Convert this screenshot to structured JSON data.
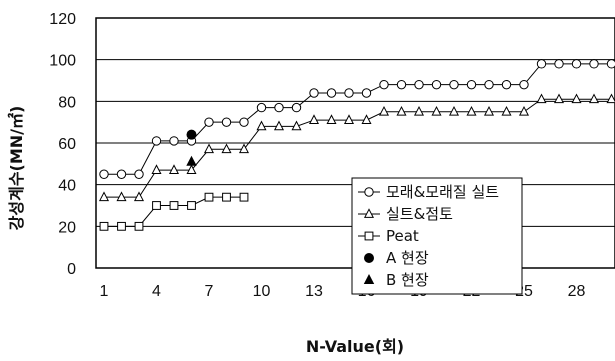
{
  "chart_data": {
    "type": "line",
    "xlabel": "N-Value(회)",
    "ylabel": "강성계수(MN/㎡)",
    "xlim": [
      0,
      30
    ],
    "ylim": [
      0,
      120
    ],
    "xticks": [
      1,
      4,
      7,
      10,
      13,
      16,
      19,
      22,
      25,
      28
    ],
    "yticks": [
      0,
      20,
      40,
      60,
      80,
      100,
      120
    ],
    "grid": "horizontal",
    "legend_position": "right",
    "series": [
      {
        "name": "모래&모래질 실트",
        "marker": "circle-open",
        "x": [
          1,
          2,
          3,
          4,
          5,
          6,
          7,
          8,
          9,
          10,
          11,
          12,
          13,
          14,
          15,
          16,
          17,
          18,
          19,
          20,
          21,
          22,
          23,
          24,
          25,
          26,
          27,
          28,
          29,
          30
        ],
        "y": [
          45,
          45,
          45,
          61,
          61,
          61,
          70,
          70,
          70,
          77,
          77,
          77,
          84,
          84,
          84,
          84,
          88,
          88,
          88,
          88,
          88,
          88,
          88,
          88,
          88,
          98,
          98,
          98,
          98,
          98
        ]
      },
      {
        "name": "실트&점토",
        "marker": "triangle-open",
        "x": [
          1,
          2,
          3,
          4,
          5,
          6,
          7,
          8,
          9,
          10,
          11,
          12,
          13,
          14,
          15,
          16,
          17,
          18,
          19,
          20,
          21,
          22,
          23,
          24,
          25,
          26,
          27,
          28,
          29,
          30
        ],
        "y": [
          34,
          34,
          34,
          47,
          47,
          47,
          57,
          57,
          57,
          68,
          68,
          68,
          71,
          71,
          71,
          71,
          75,
          75,
          75,
          75,
          75,
          75,
          75,
          75,
          75,
          81,
          81,
          81,
          81,
          81
        ]
      },
      {
        "name": "Peat",
        "marker": "square-open",
        "x": [
          1,
          2,
          3,
          4,
          5,
          6,
          7,
          8,
          9
        ],
        "y": [
          20,
          20,
          20,
          30,
          30,
          30,
          34,
          34,
          34
        ]
      },
      {
        "name": "A 현장",
        "marker": "circle-filled",
        "x": [
          6
        ],
        "y": [
          64
        ]
      },
      {
        "name": "B 현장",
        "marker": "triangle-filled",
        "x": [
          6
        ],
        "y": [
          51
        ]
      }
    ]
  }
}
